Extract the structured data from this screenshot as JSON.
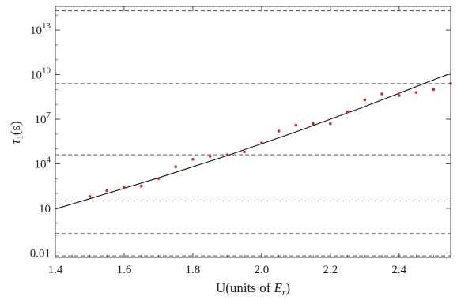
{
  "chart_data": {
    "type": "scatter",
    "xlabel": "U(units of E_r)",
    "ylabel": "τ_1(s)",
    "xlim": [
      1.4,
      2.55
    ],
    "ylim_log10": [
      -2.3,
      14.6
    ],
    "y_scale": "log",
    "x_ticks": [
      1.4,
      1.6,
      1.8,
      2.0,
      2.2,
      2.4
    ],
    "x_tick_labels": [
      "1.4",
      "1.6",
      "1.8",
      "2.0",
      "2.2",
      "2.4"
    ],
    "y_ticks_log10": [
      -2,
      1,
      4,
      7,
      10,
      13
    ],
    "y_tick_labels": [
      "0.01",
      "10",
      "10^4",
      "10^7",
      "10^10",
      "10^13"
    ],
    "grid": false,
    "reference_lines_log10": [
      14.3,
      9.4,
      4.6,
      1.5,
      -0.7,
      -2.2
    ],
    "series": [
      {
        "kind": "points",
        "color": "#dd2222",
        "x": [
          1.5,
          1.55,
          1.6,
          1.65,
          1.7,
          1.75,
          1.8,
          1.85,
          1.9,
          1.95,
          2.0,
          2.05,
          2.1,
          2.15,
          2.2,
          2.25,
          2.3,
          2.35,
          2.4,
          2.45,
          2.5,
          2.55
        ],
        "y_log10": [
          1.8,
          2.2,
          2.4,
          2.5,
          3.0,
          3.8,
          4.3,
          4.5,
          4.6,
          4.8,
          5.4,
          6.2,
          6.6,
          6.7,
          6.7,
          7.5,
          8.3,
          8.7,
          8.6,
          8.8,
          9.0,
          9.4
        ]
      },
      {
        "kind": "line",
        "color": "#111111",
        "x": [
          1.4,
          1.5,
          1.6,
          1.7,
          1.8,
          1.9,
          2.0,
          2.1,
          2.2,
          2.3,
          2.4,
          2.5,
          2.54
        ],
        "y_log10": [
          0.95,
          1.65,
          2.35,
          3.05,
          3.8,
          4.55,
          5.35,
          6.15,
          7.0,
          7.85,
          8.75,
          9.65,
          10.0
        ]
      }
    ]
  }
}
